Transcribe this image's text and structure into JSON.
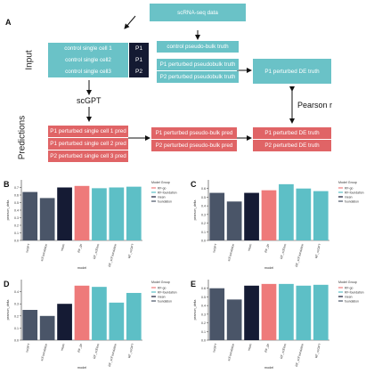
{
  "figure_label_a": "A",
  "diagram": {
    "top_box": "scRNA-seq data",
    "controls": [
      "control single cell 1",
      "control single cell2",
      "control single cell3"
    ],
    "p_badges": [
      "P1",
      "P1",
      "P2"
    ],
    "pseudo_bulk": "control pseudo-bulk truth",
    "pb_truths": [
      "P1 perturbed pseudobulk truth",
      "P2 perturbed pseudobulk truth"
    ],
    "de_truth_top": "P1 perturbed DE truth",
    "section_input": "Input",
    "section_predictions": "Predictions",
    "model_name": "scGPT",
    "preds": [
      "P1 perturbed single cell 1 pred",
      "P1 perturbed single cell 2 pred",
      "P2 perturbed single cell 3 pred"
    ],
    "pb_preds": [
      "P1 perturbed pseudo-bulk pred",
      "P2 perturbed pseudo-bulk pred"
    ],
    "de_truth_bottom": "P1 perturbed DE truth",
    "de_pred": "P2 perturbed DE truth",
    "metric": "Pearson r"
  },
  "chart_data": [
    {
      "panel": "B",
      "type": "bar",
      "categories": [
        "scGPT",
        "scFoundation",
        "mean",
        "RF_go",
        "RF_scElmo",
        "RF_scFoundation",
        "RF_scGPT"
      ],
      "values": [
        0.64,
        0.56,
        0.7,
        0.72,
        0.69,
        0.7,
        0.71
      ],
      "ylim": [
        0,
        0.8
      ],
      "yticks": [
        0.0,
        0.1,
        0.2,
        0.3,
        0.4,
        0.5,
        0.6,
        0.7
      ],
      "ylabel": "pearson_delta",
      "xlabel": "model",
      "bar_colors": [
        "#4a5568",
        "#4a5568",
        "#151b34",
        "#ee7a7a",
        "#5dbfc6",
        "#5dbfc6",
        "#5dbfc6"
      ],
      "legend_title": "Model Group",
      "legend": [
        {
          "label": "RF-go",
          "color": "#ee7a7a"
        },
        {
          "label": "RF-foundation",
          "color": "#5dbfc6"
        },
        {
          "label": "mean",
          "color": "#151b34"
        },
        {
          "label": "foundation",
          "color": "#4a5568"
        }
      ],
      "legend_position": "top-right"
    },
    {
      "panel": "C",
      "type": "bar",
      "categories": [
        "scGPT",
        "scFoundation",
        "mean",
        "RF_go",
        "RF_scElmo",
        "RF_scFoundation",
        "RF_scGPT"
      ],
      "values": [
        0.55,
        0.45,
        0.55,
        0.58,
        0.65,
        0.6,
        0.57
      ],
      "ylim": [
        0,
        0.7
      ],
      "yticks": [
        0.0,
        0.1,
        0.2,
        0.3,
        0.4,
        0.5,
        0.6
      ],
      "ylabel": "pearson_delta",
      "xlabel": "model",
      "bar_colors": [
        "#4a5568",
        "#4a5568",
        "#151b34",
        "#ee7a7a",
        "#5dbfc6",
        "#5dbfc6",
        "#5dbfc6"
      ],
      "legend_title": "Model Group",
      "legend": [
        {
          "label": "RF-go",
          "color": "#ee7a7a"
        },
        {
          "label": "RF-foundation",
          "color": "#5dbfc6"
        },
        {
          "label": "mean",
          "color": "#151b34"
        },
        {
          "label": "foundation",
          "color": "#4a5568"
        }
      ],
      "legend_position": "top-right"
    },
    {
      "panel": "D",
      "type": "bar",
      "categories": [
        "scGPT",
        "scFoundation",
        "mean",
        "RF_go",
        "RF_scElmo",
        "RF_scFoundation",
        "RF_scGPT"
      ],
      "values": [
        0.25,
        0.2,
        0.3,
        0.45,
        0.44,
        0.31,
        0.39
      ],
      "ylim": [
        0,
        0.5
      ],
      "yticks": [
        0.0,
        0.1,
        0.2,
        0.3,
        0.4
      ],
      "ylabel": "pearson_delta",
      "xlabel": "model",
      "bar_colors": [
        "#4a5568",
        "#4a5568",
        "#151b34",
        "#ee7a7a",
        "#5dbfc6",
        "#5dbfc6",
        "#5dbfc6"
      ],
      "legend_title": "Model Group",
      "legend": [
        {
          "label": "RF-go",
          "color": "#ee7a7a"
        },
        {
          "label": "RF-foundation",
          "color": "#5dbfc6"
        },
        {
          "label": "mean",
          "color": "#151b34"
        },
        {
          "label": "foundation",
          "color": "#4a5568"
        }
      ],
      "legend_position": "top-right"
    },
    {
      "panel": "E",
      "type": "bar",
      "categories": [
        "scGPT",
        "scFoundation",
        "mean",
        "RF_go",
        "RF_scElmo",
        "RF_scFoundation",
        "RF_scGPT"
      ],
      "values": [
        0.6,
        0.47,
        0.63,
        0.65,
        0.65,
        0.63,
        0.64
      ],
      "ylim": [
        0,
        0.7
      ],
      "yticks": [
        0.0,
        0.1,
        0.2,
        0.3,
        0.4,
        0.5,
        0.6
      ],
      "ylabel": "pearson_delta",
      "xlabel": "model",
      "bar_colors": [
        "#4a5568",
        "#4a5568",
        "#151b34",
        "#ee7a7a",
        "#5dbfc6",
        "#5dbfc6",
        "#5dbfc6"
      ],
      "legend_title": "Model Group",
      "legend": [
        {
          "label": "RF-go",
          "color": "#ee7a7a"
        },
        {
          "label": "RF-foundation",
          "color": "#5dbfc6"
        },
        {
          "label": "mean",
          "color": "#151b34"
        },
        {
          "label": "foundation",
          "color": "#4a5568"
        }
      ],
      "legend_position": "top-right"
    }
  ]
}
